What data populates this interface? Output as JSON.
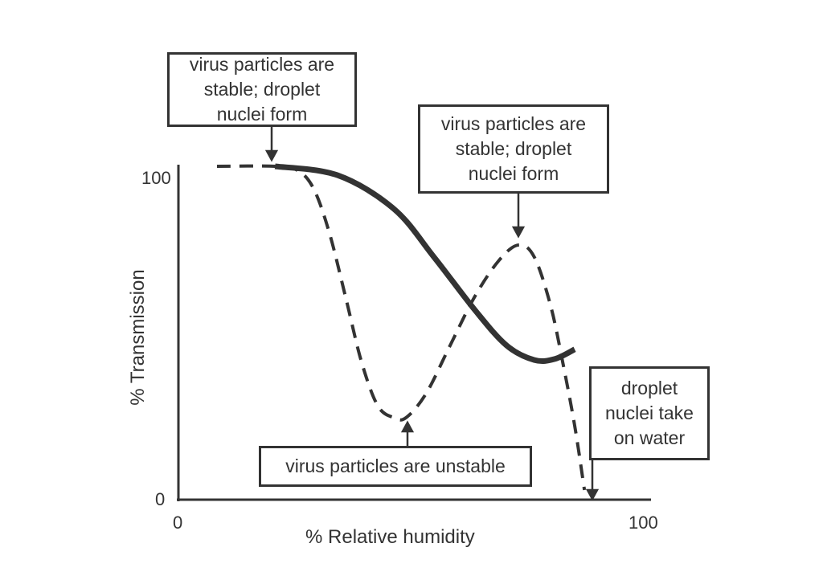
{
  "chart_data": {
    "type": "line",
    "xlabel": "% Relative humidity",
    "ylabel": "% Transmission",
    "xlim": [
      0,
      100
    ],
    "ylim": [
      0,
      100
    ],
    "x_ticks": [
      "0",
      "100"
    ],
    "y_ticks": [
      "0",
      "100"
    ],
    "grid": false,
    "series": [
      {
        "style": "solid",
        "color": "#333333",
        "x": [
          20.8,
          34.3,
          46.4,
          55.0,
          63.7,
          70.6,
          76.6,
          81.0,
          85.3
        ],
        "y": [
          100,
          97.3,
          87.2,
          72.8,
          57.1,
          46.3,
          41.9,
          42.2,
          45.1
        ]
      },
      {
        "style": "dashed",
        "color": "#333333",
        "x": [
          8.3,
          20.8,
          25.6,
          29.1,
          32.5,
          36.0,
          39.4,
          42.9,
          46.4,
          49.0,
          53.3,
          58.5,
          63.7,
          68.9,
          73.2,
          76.6,
          80.1,
          82.7,
          85.3,
          87.4
        ],
        "y": [
          100,
          100,
          98.8,
          93.3,
          80,
          60.7,
          41.4,
          28.2,
          24.6,
          24.6,
          31.8,
          46.3,
          60.7,
          71.6,
          76.4,
          72.8,
          58.3,
          41.4,
          22.2,
          2.9
        ]
      }
    ],
    "annotations": [
      {
        "text": "virus particles are stable; droplet nuclei form",
        "points_to": [
          20.2,
          100
        ]
      },
      {
        "text": "virus particles are stable; droplet nuclei form",
        "points_to": [
          73.2,
          77
        ]
      },
      {
        "text": "virus particles are unstable",
        "points_to": [
          49.5,
          23
        ]
      },
      {
        "text": "droplet nuclei take on water",
        "points_to": [
          89.1,
          0
        ]
      }
    ]
  },
  "annotation_lines": {
    "a1": [
      "virus particles are",
      "stable; droplet",
      "nuclei form"
    ],
    "a2": [
      "virus particles are",
      "stable; droplet",
      "nuclei form"
    ],
    "a3": [
      "virus particles are unstable"
    ],
    "a4": [
      "droplet",
      "nuclei take",
      "on water"
    ]
  }
}
